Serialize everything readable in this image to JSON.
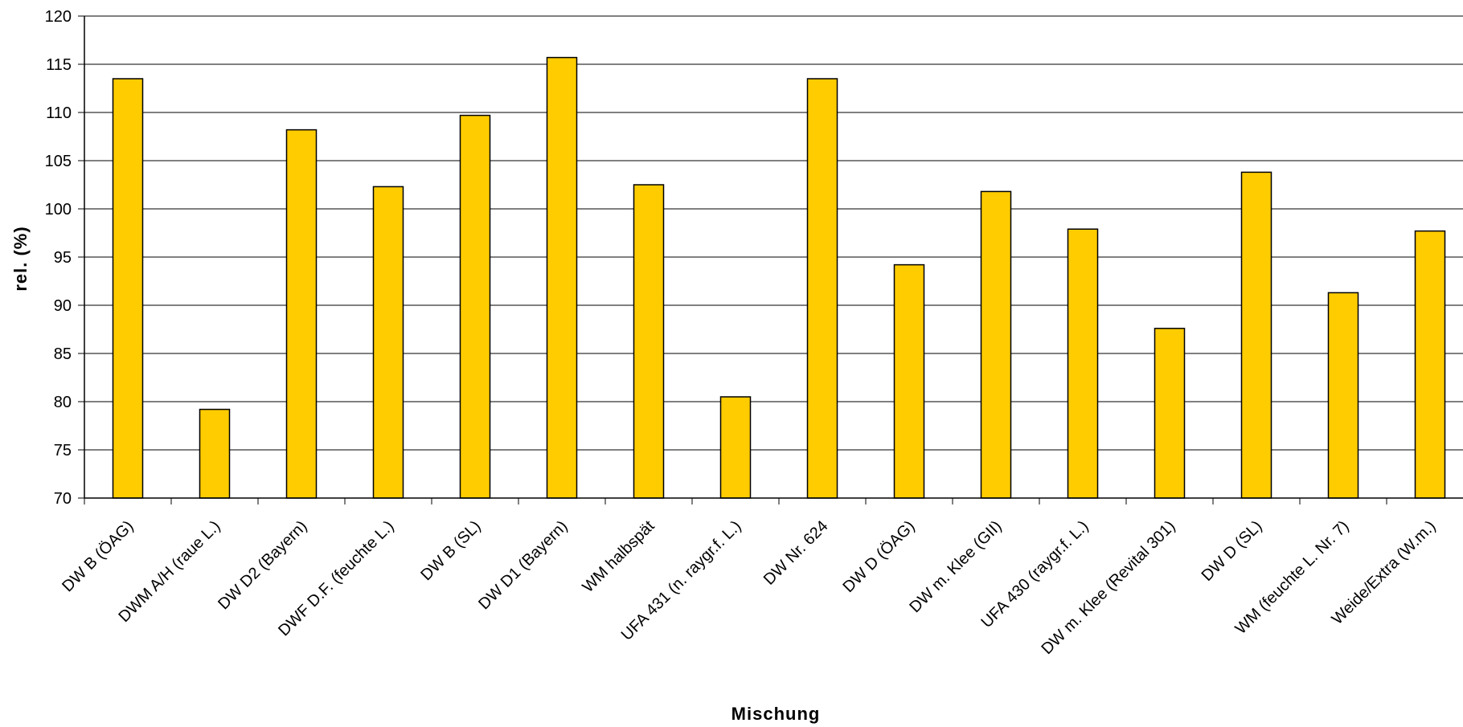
{
  "chart_data": {
    "type": "bar",
    "title": "",
    "xlabel": "Mischung",
    "ylabel": "rel. (%)",
    "ylim": [
      70,
      120
    ],
    "yticks": [
      70,
      75,
      80,
      85,
      90,
      95,
      100,
      105,
      110,
      115,
      120
    ],
    "grid": true,
    "legend": "none",
    "bar_color": "#FFCC00",
    "categories": [
      "DW B (ÖAG)",
      "DWM A/H (raue L.)",
      "DW D2 (Bayern)",
      "DWF D.F. (feuchte L.)",
      "DW B (SL)",
      "DW D1 (Bayern)",
      "WM halbspät",
      "UFA 431 (n. raygr.f. L.)",
      "DW Nr. 624",
      "DW D (ÖAG)",
      "DW m. Klee (GII)",
      "UFA 430 (raygr.f. L.)",
      "DW m. Klee (Revital 301)",
      "DW D (SL)",
      "WM (feuchte L. Nr. 7)",
      "Weide/Extra (W.m.)"
    ],
    "values": [
      113.5,
      79.2,
      108.2,
      102.3,
      109.7,
      115.7,
      102.5,
      80.5,
      113.5,
      94.2,
      101.8,
      97.9,
      87.6,
      103.8,
      91.3,
      97.7
    ]
  }
}
